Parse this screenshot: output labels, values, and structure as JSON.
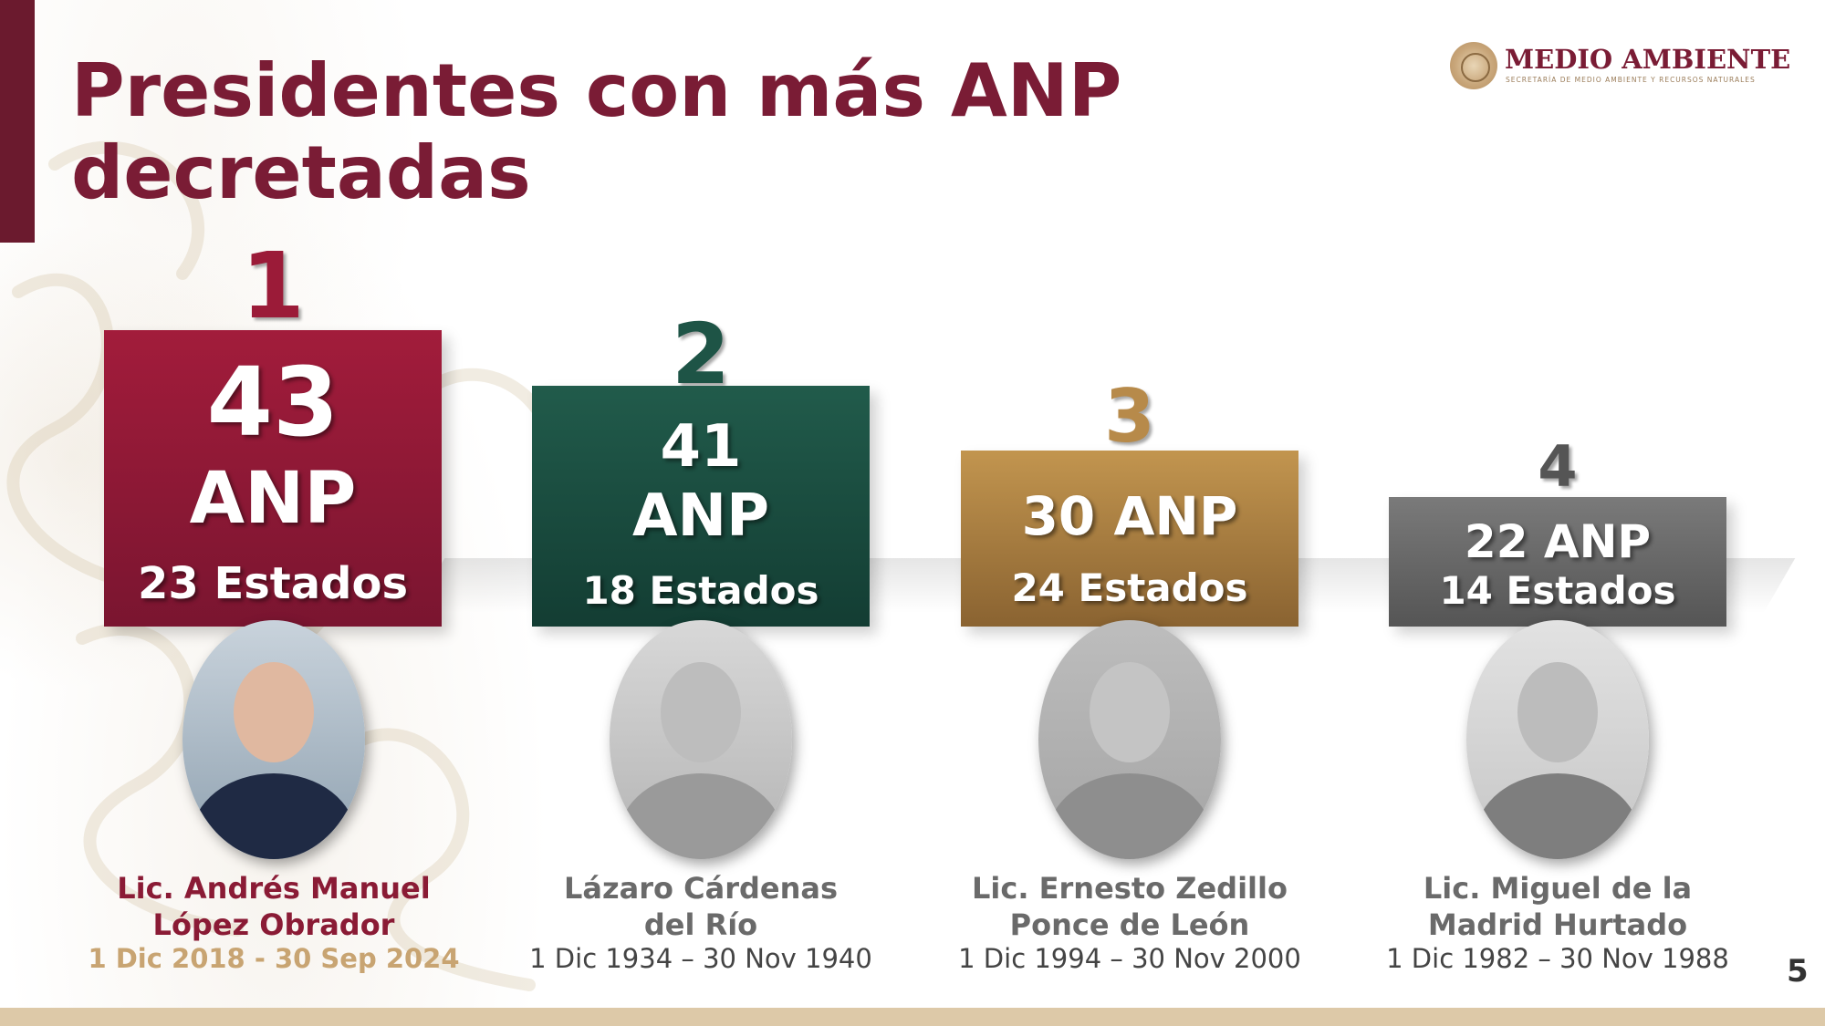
{
  "title": "Presidentes con más ANP decretadas",
  "logo": {
    "name": "MEDIO AMBIENTE",
    "subtitle": "SECRETARÍA DE MEDIO AMBIENTE Y RECURSOS NATURALES"
  },
  "colors": {
    "title": "#7a1c35",
    "rank1": "#9b1b38",
    "rank2": "#1e5446",
    "rank3": "#b78a4a",
    "rank4": "#6b6b6b",
    "dates1": "#c8a472"
  },
  "presidents": [
    {
      "rank": "1",
      "anp": "43",
      "anp_unit": "ANP",
      "states": "23 Estados",
      "name_line1": "Lic. Andrés Manuel",
      "name_line2": "López Obrador",
      "dates": "1 Dic 2018 - 30 Sep 2024"
    },
    {
      "rank": "2",
      "anp": "41",
      "anp_unit": "ANP",
      "states": "18 Estados",
      "name_line1": "Lázaro Cárdenas",
      "name_line2": "del Río",
      "dates": "1 Dic 1934 – 30 Nov 1940"
    },
    {
      "rank": "3",
      "anp": "30 ANP",
      "states": "24 Estados",
      "name_line1": "Lic. Ernesto Zedillo",
      "name_line2": "Ponce de León",
      "dates": "1 Dic 1994 – 30 Nov 2000"
    },
    {
      "rank": "4",
      "anp": "22 ANP",
      "states": "14 Estados",
      "name_line1": "Lic. Miguel de la",
      "name_line2": "Madrid Hurtado",
      "dates": "1 Dic 1982 – 30 Nov 1988"
    }
  ],
  "page_number": "5"
}
